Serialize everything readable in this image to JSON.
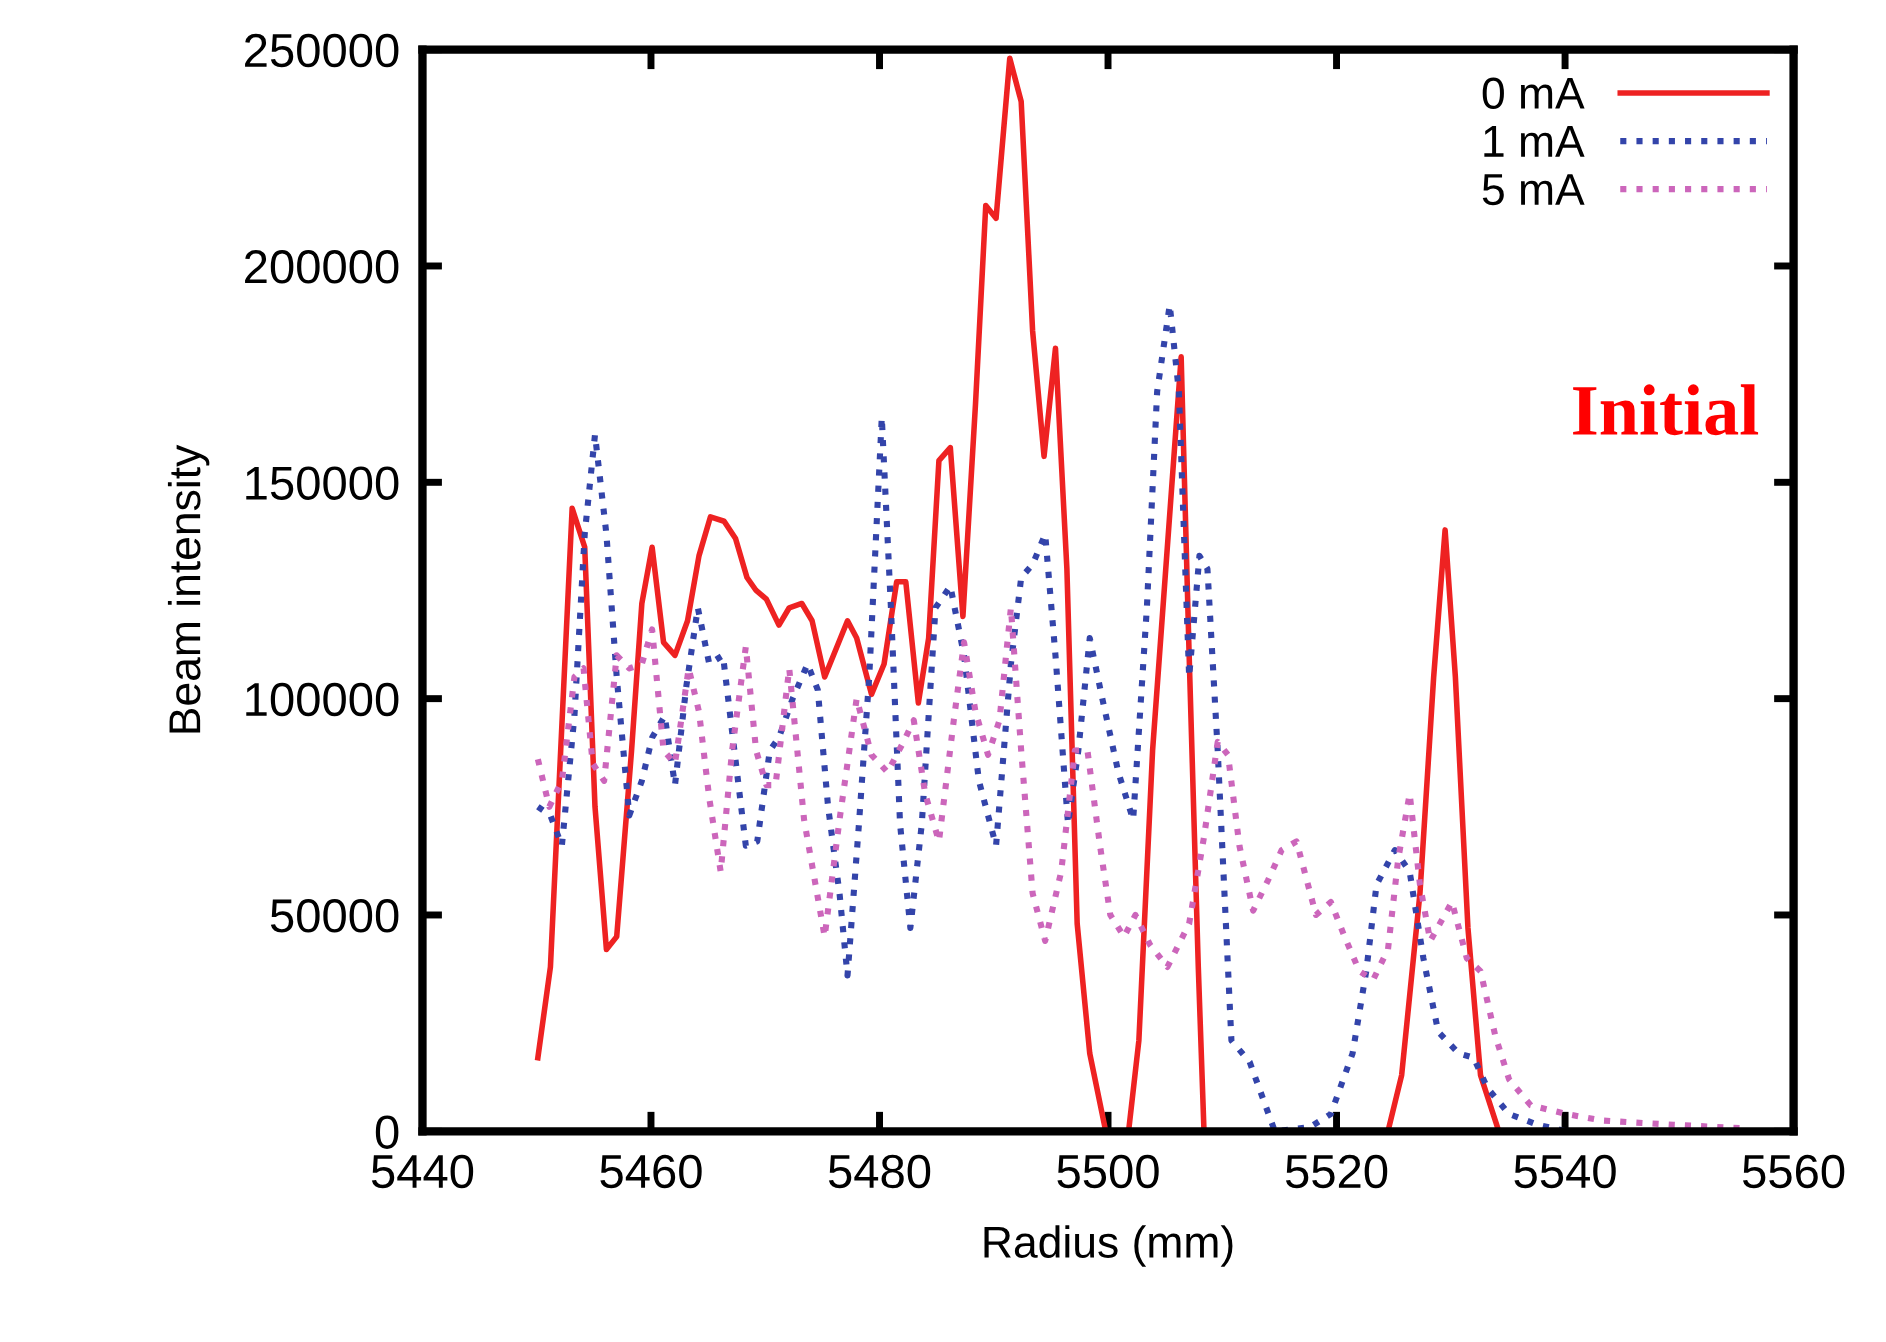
{
  "chart_data": {
    "type": "line",
    "xlabel": "Radius (mm)",
    "ylabel": "Beam intensity",
    "xlim": [
      5440,
      5560
    ],
    "xticks": [
      5440,
      5460,
      5480,
      5500,
      5520,
      5540,
      5560
    ],
    "ylim": [
      0,
      250000
    ],
    "yticks": [
      0,
      50000,
      100000,
      150000,
      200000,
      250000
    ],
    "grid": false,
    "legend": "top right",
    "marker": "none",
    "annotations": [
      "Initial"
    ],
    "series": [
      {
        "name": "0 mA",
        "color": "#ee2222",
        "line_style": "solid",
        "x": [
          5450.1,
          5451.2,
          5453.1,
          5454.2,
          5455.1,
          5456.1,
          5457,
          5458.3,
          5459.2,
          5460.1,
          5461.1,
          5462.1,
          5463.2,
          5464.2,
          5465.2,
          5466.4,
          5467.4,
          5468.4,
          5469.2,
          5470.1,
          5471.2,
          5472.1,
          5473.2,
          5474.1,
          5475.2,
          5477.2,
          5478,
          5479.3,
          5480.4,
          5481.5,
          5482.3,
          5483.4,
          5484.3,
          5485.2,
          5486.2,
          5487.3,
          5488.4,
          5489.3,
          5490.2,
          5491.4,
          5492.4,
          5493.4,
          5494.4,
          5495.4,
          5496.4,
          5497.3,
          5498.4,
          5499.8,
          5501.8,
          5502.7,
          5503.9,
          5506.4,
          5507.1,
          5507.9,
          5508.4,
          5524.5,
          5525.7,
          5527.3,
          5528.5,
          5529.5,
          5530.4,
          5531.5,
          5532.6,
          5534.2
        ],
        "values": [
          17000,
          38000,
          144000,
          135000,
          75000,
          42000,
          45000,
          88000,
          122000,
          135000,
          113000,
          110000,
          118000,
          133000,
          142000,
          141000,
          137000,
          128000,
          125000,
          123000,
          117000,
          121000,
          122000,
          118000,
          105000,
          118000,
          114000,
          101000,
          108000,
          127000,
          127000,
          99000,
          114000,
          155000,
          158000,
          119000,
          168000,
          214000,
          211000,
          248000,
          238000,
          185000,
          156000,
          181000,
          130000,
          48000,
          18000,
          0,
          0,
          21000,
          88000,
          179000,
          110000,
          38000,
          0,
          0,
          13000,
          55000,
          105000,
          139000,
          105000,
          47000,
          13000,
          0
        ]
      },
      {
        "name": "1 mA",
        "color": "#3344aa",
        "line_style": "dotted",
        "x": [
          5450.1,
          5451.2,
          5452.2,
          5453.3,
          5454.2,
          5455.1,
          5456.1,
          5457,
          5458.1,
          5459.2,
          5460.1,
          5461.2,
          5462.1,
          5463.1,
          5464.1,
          5465.1,
          5466.3,
          5467.3,
          5468.3,
          5469.3,
          5470.4,
          5471.2,
          5472.4,
          5473.7,
          5474.6,
          5475.5,
          5476.5,
          5477.2,
          5478.2,
          5479.1,
          5480.2,
          5481,
          5481.8,
          5482.7,
          5483.7,
          5484.9,
          5486.2,
          5487.4,
          5488.7,
          5490.2,
          5491.5,
          5492.4,
          5493.4,
          5494.5,
          5495.4,
          5496.5,
          5497.4,
          5498.4,
          5499.5,
          5500.9,
          5502.2,
          5503.4,
          5504.3,
          5505.4,
          5506.2,
          5507.1,
          5508,
          5508.7,
          5509.6,
          5510.8,
          5512.4,
          5514.6,
          5517.7,
          5519.5,
          5521.4,
          5522.6,
          5523.5,
          5525.1,
          5526.4,
          5527.6,
          5528.9,
          5530.7,
          5532,
          5533.2,
          5535.1,
          5537.6,
          5540.1
        ],
        "values": [
          75000,
          73000,
          66000,
          96000,
          138000,
          161000,
          138000,
          105000,
          73000,
          81000,
          91000,
          96000,
          80000,
          103000,
          121000,
          108000,
          110000,
          88000,
          66000,
          67000,
          88000,
          91000,
          100000,
          108000,
          102000,
          75000,
          55000,
          36000,
          71000,
          105000,
          165000,
          121000,
          71000,
          47000,
          71000,
          121000,
          126000,
          110000,
          81000,
          66000,
          108000,
          128000,
          131000,
          138000,
          110000,
          71000,
          88000,
          114000,
          100000,
          83000,
          72000,
          121000,
          171000,
          191000,
          171000,
          105000,
          133000,
          130000,
          88000,
          21000,
          16000,
          0,
          1000,
          4000,
          18000,
          37000,
          57000,
          65000,
          60000,
          40000,
          23000,
          18000,
          17000,
          10000,
          4000,
          1500,
          0
        ]
      },
      {
        "name": "5 mA",
        "color": "#cc66bb",
        "line_style": "dotted",
        "x": [
          5450.1,
          5451.1,
          5452.2,
          5453.3,
          5454.1,
          5454.9,
          5455.9,
          5457,
          5458.1,
          5459.2,
          5460.1,
          5461.1,
          5462.1,
          5463.3,
          5464.2,
          5465.1,
          5466.1,
          5467.1,
          5468.3,
          5469.2,
          5470.1,
          5470.9,
          5472.1,
          5473.4,
          5475.2,
          5476.5,
          5478,
          5479.3,
          5480.7,
          5482.1,
          5483,
          5484,
          5485.2,
          5486.5,
          5487.4,
          5488.4,
          5489.5,
          5490.5,
          5491.5,
          5492.4,
          5493.4,
          5494.5,
          5495.9,
          5497.1,
          5498.2,
          5499.3,
          5500.2,
          5501.4,
          5502.4,
          5503.7,
          5505.2,
          5507.1,
          5508.4,
          5509.6,
          5510.5,
          5511.5,
          5512.7,
          5514,
          5515.2,
          5516.5,
          5517.7,
          5518.2,
          5519.5,
          5520.7,
          5522,
          5523.2,
          5524.5,
          5525.4,
          5526.4,
          5527.3,
          5528.2,
          5530.1,
          5531.4,
          5532.6,
          5533.9,
          5535.1,
          5537,
          5540.1,
          5543.2,
          5549.5,
          5555.7
        ],
        "values": [
          86000,
          75000,
          81000,
          105000,
          107000,
          85000,
          81000,
          110000,
          107000,
          108000,
          116000,
          88000,
          85000,
          107000,
          97000,
          77000,
          60000,
          88000,
          112000,
          88000,
          80000,
          80000,
          107000,
          72000,
          45000,
          72000,
          100000,
          87000,
          83000,
          90000,
          95000,
          78000,
          67000,
          95000,
          113000,
          97000,
          87000,
          95000,
          121000,
          88000,
          55000,
          44000,
          60000,
          88000,
          88000,
          66000,
          50000,
          45000,
          50000,
          43000,
          38000,
          48000,
          68000,
          90000,
          87000,
          66000,
          51000,
          58000,
          65000,
          67000,
          55000,
          50000,
          53000,
          45000,
          37000,
          35000,
          42000,
          63000,
          78000,
          57000,
          44000,
          53000,
          40000,
          37000,
          22000,
          12000,
          6000,
          4000,
          2500,
          1500,
          700
        ]
      }
    ]
  }
}
